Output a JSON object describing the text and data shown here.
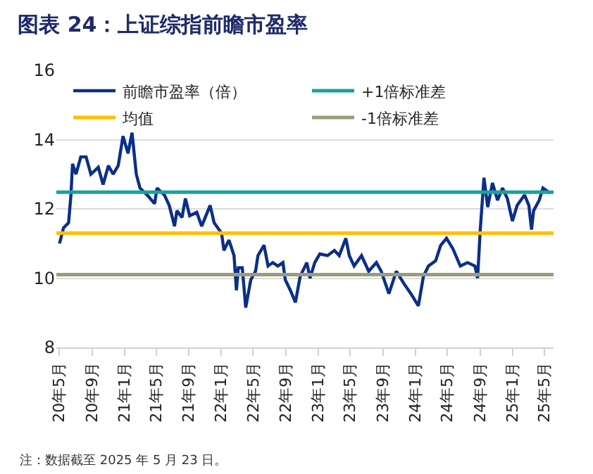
{
  "chart_data": {
    "type": "line",
    "title": "图表 24：上证综指前瞻市盈率",
    "x": [
      "2020-05-02",
      "2020-05-17",
      "2020-06-05",
      "2020-06-14",
      "2020-06-20",
      "2020-07-03",
      "2020-07-21",
      "2020-08-10",
      "2020-08-28",
      "2020-09-25",
      "2020-10-13",
      "2020-11-02",
      "2020-11-20",
      "2020-12-09",
      "2020-12-27",
      "2021-01-15",
      "2021-01-30",
      "2021-02-15",
      "2021-03-01",
      "2021-03-28",
      "2021-04-25",
      "2021-05-04",
      "2021-06-01",
      "2021-06-19",
      "2021-07-09",
      "2021-07-18",
      "2021-08-06",
      "2021-08-19",
      "2021-09-04",
      "2021-10-01",
      "2021-10-19",
      "2021-11-20",
      "2021-12-05",
      "2022-01-02",
      "2022-01-11",
      "2022-01-30",
      "2022-02-18",
      "2022-02-27",
      "2022-03-06",
      "2022-03-21",
      "2022-04-03",
      "2022-04-22",
      "2022-05-10",
      "2022-05-19",
      "2022-06-11",
      "2022-06-26",
      "2022-07-14",
      "2022-08-02",
      "2022-08-21",
      "2022-08-30",
      "2022-09-18",
      "2022-10-07",
      "2022-10-25",
      "2022-11-19",
      "2022-12-01",
      "2022-12-19",
      "2023-01-07",
      "2023-02-05",
      "2023-03-03",
      "2023-03-21",
      "2023-04-15",
      "2023-04-28",
      "2023-05-16",
      "2023-06-13",
      "2023-07-10",
      "2023-08-08",
      "2023-08-26",
      "2023-09-24",
      "2023-10-22",
      "2023-11-19",
      "2023-12-16",
      "2024-01-13",
      "2024-02-01",
      "2024-02-20",
      "2024-03-18",
      "2024-04-06",
      "2024-04-28",
      "2024-05-22",
      "2024-06-19",
      "2024-07-16",
      "2024-08-13",
      "2024-08-23",
      "2024-09-02",
      "2024-09-16",
      "2024-09-30",
      "2024-10-18",
      "2024-11-06",
      "2024-11-25",
      "2024-12-13",
      "2025-01-01",
      "2025-01-19",
      "2025-02-16",
      "2025-03-04",
      "2025-03-14",
      "2025-03-22",
      "2025-04-12",
      "2025-04-26",
      "2025-05-23"
    ],
    "series": [
      {
        "name": "前瞻市盈率（倍）",
        "color": "#0b2f87",
        "values": [
          11.0,
          11.45,
          11.6,
          12.4,
          13.3,
          13.0,
          13.5,
          13.5,
          13.0,
          13.2,
          12.7,
          13.25,
          13.0,
          13.25,
          14.1,
          13.6,
          14.2,
          13.0,
          12.6,
          12.4,
          12.15,
          12.6,
          12.4,
          12.1,
          11.5,
          11.95,
          11.75,
          12.3,
          11.8,
          11.9,
          11.5,
          12.1,
          11.6,
          11.3,
          10.8,
          11.1,
          10.65,
          9.65,
          10.3,
          10.3,
          9.15,
          9.95,
          10.2,
          10.65,
          10.95,
          10.35,
          10.45,
          10.35,
          10.45,
          9.95,
          9.65,
          9.3,
          10.05,
          10.45,
          10.0,
          10.45,
          10.7,
          10.65,
          10.8,
          10.65,
          11.15,
          10.65,
          10.35,
          10.65,
          10.2,
          10.45,
          10.2,
          9.55,
          10.2,
          9.85,
          9.55,
          9.2,
          10.05,
          10.35,
          10.5,
          10.95,
          11.15,
          10.85,
          10.35,
          10.45,
          10.35,
          10.0,
          11.4,
          12.9,
          12.05,
          12.75,
          12.25,
          12.6,
          12.3,
          11.65,
          12.1,
          12.4,
          12.1,
          11.4,
          11.95,
          12.25,
          12.6,
          12.45
        ]
      }
    ],
    "ref_lines": [
      {
        "axis": "y",
        "value": 11.3,
        "label": "均值",
        "color": "#ffc000"
      },
      {
        "axis": "y",
        "value": 12.48,
        "label": "+1倍标准差",
        "color": "#1aa39c"
      },
      {
        "axis": "y",
        "value": 10.1,
        "label": "-1倍标准差",
        "color": "#9c9c7c"
      }
    ],
    "xlim": [
      "2020-04-20",
      "2025-06-05"
    ],
    "xticks": [
      {
        "value": "2020-05-01",
        "label": "20年5月"
      },
      {
        "value": "2020-09-01",
        "label": "20年9月"
      },
      {
        "value": "2021-01-01",
        "label": "21年1月"
      },
      {
        "value": "2021-05-01",
        "label": "21年5月"
      },
      {
        "value": "2021-09-01",
        "label": "21年9月"
      },
      {
        "value": "2022-01-01",
        "label": "22年1月"
      },
      {
        "value": "2022-05-01",
        "label": "22年5月"
      },
      {
        "value": "2022-09-01",
        "label": "22年9月"
      },
      {
        "value": "2023-01-01",
        "label": "23年1月"
      },
      {
        "value": "2023-05-01",
        "label": "23年5月"
      },
      {
        "value": "2023-09-01",
        "label": "23年9月"
      },
      {
        "value": "2024-01-01",
        "label": "24年1月"
      },
      {
        "value": "2024-05-01",
        "label": "24年5月"
      },
      {
        "value": "2024-09-01",
        "label": "24年9月"
      },
      {
        "value": "2025-01-01",
        "label": "25年1月"
      },
      {
        "value": "2025-05-01",
        "label": "25年5月"
      }
    ],
    "ylim": [
      8,
      16
    ],
    "yticks": [
      8,
      10,
      12,
      14,
      16
    ],
    "grid": "y",
    "legend": "top",
    "annotations": [
      "注：数据截至 2025 年 5 月 23 日。"
    ]
  }
}
